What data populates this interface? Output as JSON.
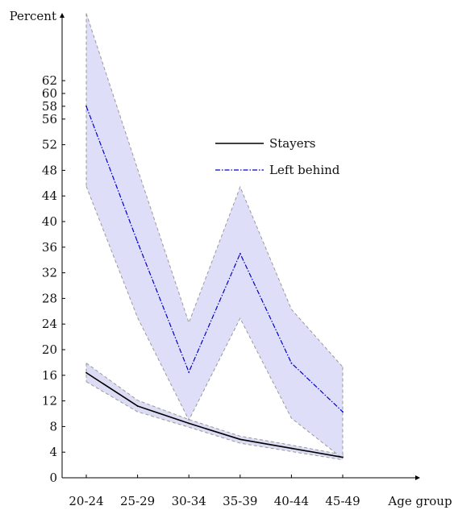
{
  "chart_data": {
    "type": "line",
    "xlabel": "Age group",
    "ylabel": "Percent",
    "categories": [
      "20-24",
      "25-29",
      "30-34",
      "35-39",
      "40-44",
      "45-49"
    ],
    "ylim": [
      0,
      64
    ],
    "yticks": [
      0,
      4,
      8,
      12,
      16,
      20,
      24,
      28,
      32,
      36,
      40,
      44,
      48,
      52,
      56,
      58,
      60,
      62
    ],
    "grid": false,
    "legend_position": "upper-center",
    "series": [
      {
        "name": "Stayers",
        "values": [
          16.4,
          11.2,
          8.5,
          6.0,
          4.6,
          3.2
        ],
        "lower": [
          15.0,
          10.3,
          7.9,
          5.4,
          4.1,
          2.8
        ],
        "upper": [
          17.9,
          12.1,
          9.1,
          6.5,
          5.1,
          3.6
        ],
        "line_color": "#000000",
        "line_style": "solid",
        "band_color": "#dcdcf5"
      },
      {
        "name": "Left behind",
        "values": [
          58.0,
          36.8,
          16.5,
          35.0,
          17.9,
          10.3
        ],
        "lower": [
          45.5,
          25.0,
          9.0,
          24.9,
          9.3,
          3.0
        ],
        "upper": [
          72.5,
          48.2,
          24.2,
          45.4,
          26.3,
          17.3
        ],
        "line_color": "#0000c8",
        "line_style": "dashdot",
        "band_color": "#dedef8"
      }
    ]
  }
}
